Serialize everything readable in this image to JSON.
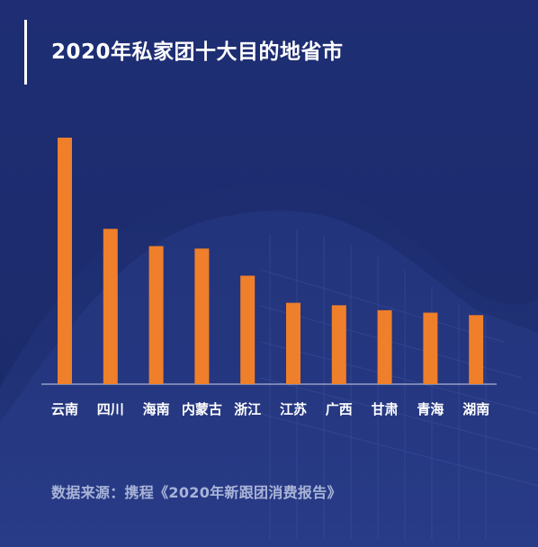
{
  "colors": {
    "background": "#1c2b6b",
    "bar": "#ef7f2a",
    "text": "#ffffff",
    "source_text": "#a9b4d8"
  },
  "title": "2020年私家团十大目的地省市",
  "source": "数据来源：携程《2020年新跟团消费报告》",
  "chart_data": {
    "type": "bar",
    "title": "2020年私家团十大目的地省市",
    "categories": [
      "云南",
      "四川",
      "海南",
      "内蒙古",
      "浙江",
      "江苏",
      "广西",
      "甘肃",
      "青海",
      "湖南"
    ],
    "values": [
      100,
      63,
      56,
      55,
      44,
      33,
      32,
      30,
      29,
      28
    ],
    "xlabel": "",
    "ylabel": "",
    "ylim": [
      0,
      100
    ],
    "grid": false,
    "legend": "none"
  }
}
